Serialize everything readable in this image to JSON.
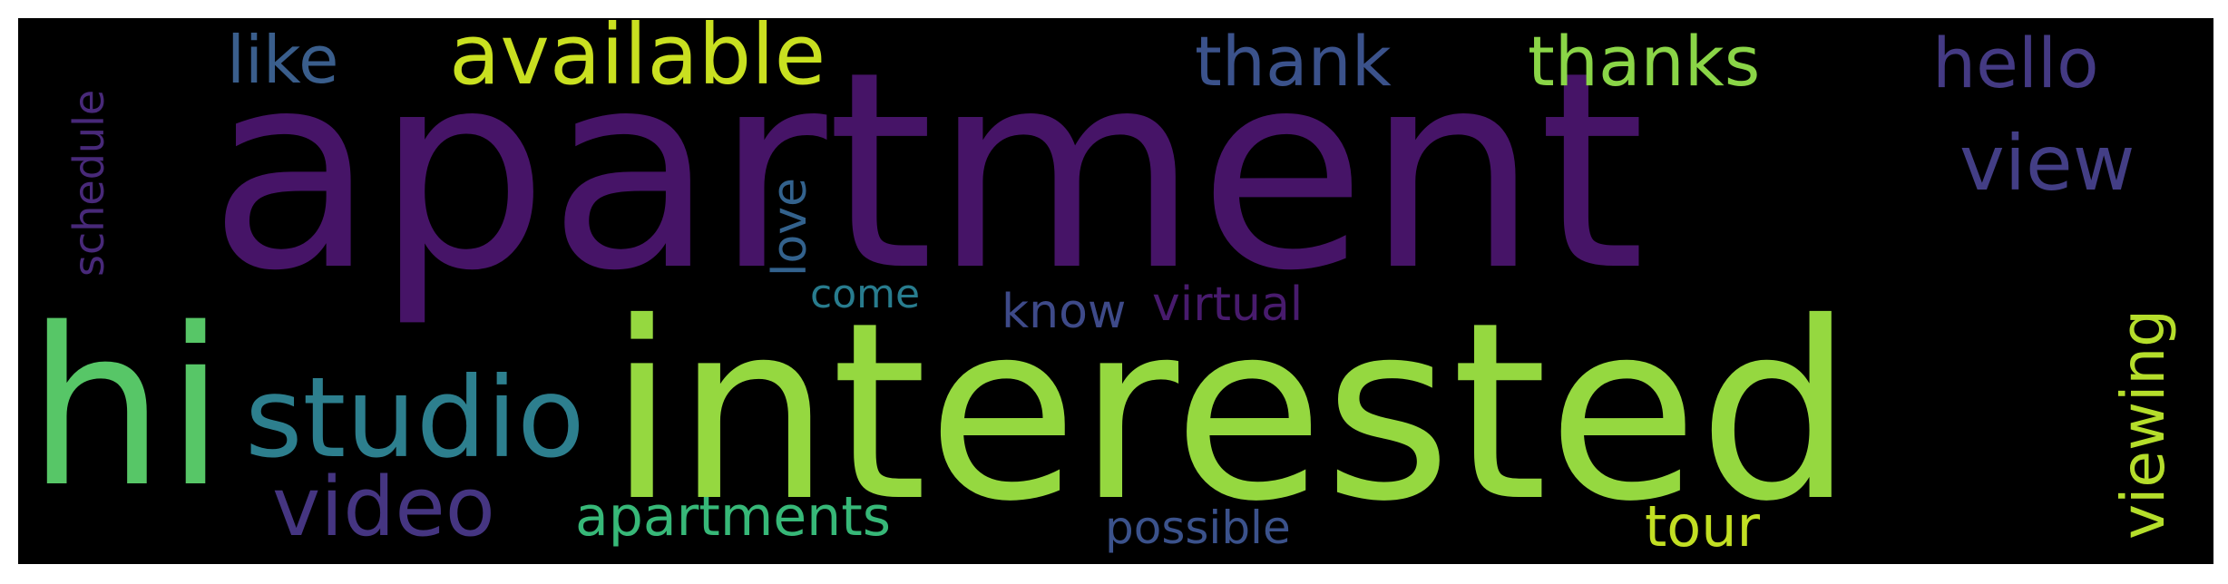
{
  "words": [
    {
      "text": "apartment",
      "color": "#461467"
    },
    {
      "text": "interested",
      "color": "#95d840"
    },
    {
      "text": "hi",
      "color": "#57c667"
    },
    {
      "text": "studio",
      "color": "#2d7f8e"
    },
    {
      "text": "video",
      "color": "#453581"
    },
    {
      "text": "available",
      "color": "#c9e020"
    },
    {
      "text": "like",
      "color": "#3a5e8c"
    },
    {
      "text": "thank",
      "color": "#3b528b"
    },
    {
      "text": "thanks",
      "color": "#8ad547"
    },
    {
      "text": "hello",
      "color": "#443a83"
    },
    {
      "text": "view",
      "color": "#433e85"
    },
    {
      "text": "viewing",
      "color": "#b5de2b"
    },
    {
      "text": "schedule",
      "color": "#482979"
    },
    {
      "text": "love",
      "color": "#33628d"
    },
    {
      "text": "come",
      "color": "#287c8e"
    },
    {
      "text": "know",
      "color": "#3e4a89"
    },
    {
      "text": "virtual",
      "color": "#481b6d"
    },
    {
      "text": "apartments",
      "color": "#37b878"
    },
    {
      "text": "possible",
      "color": "#3b528b"
    },
    {
      "text": "tour",
      "color": "#c2df23"
    }
  ]
}
